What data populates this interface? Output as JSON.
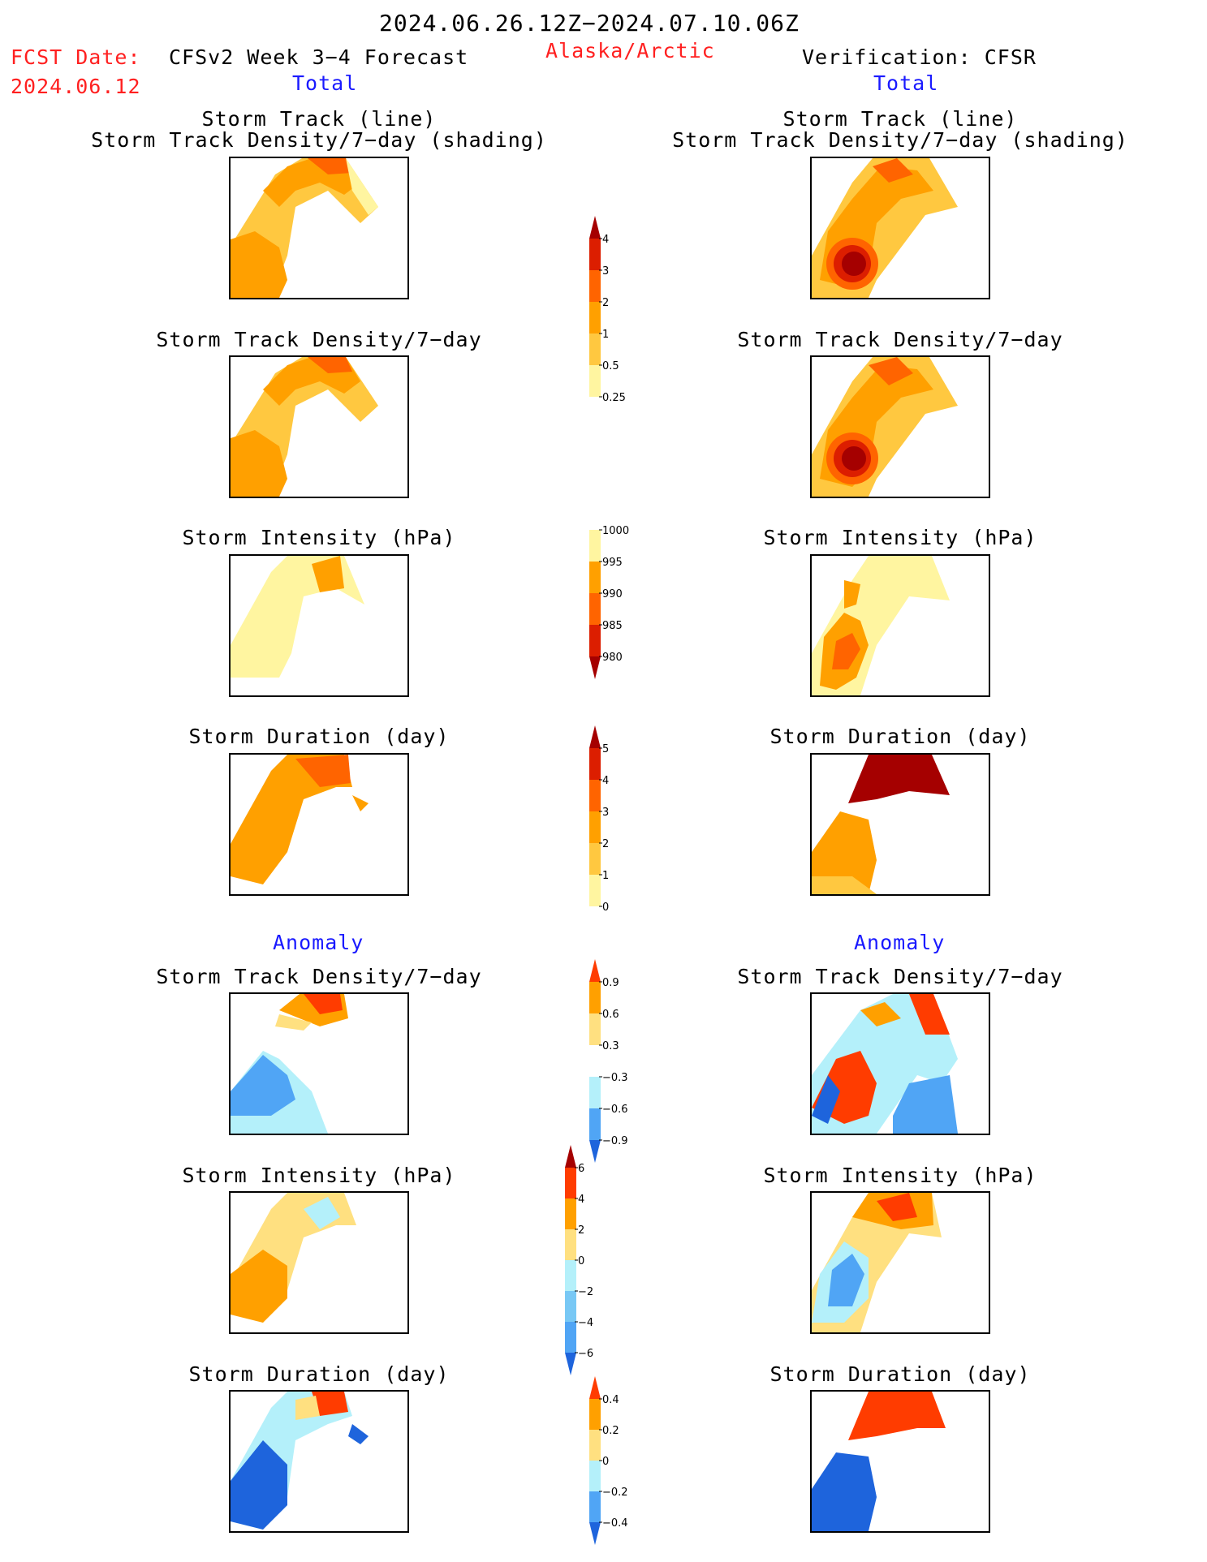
{
  "header": {
    "date_range": "2024.06.26.12Z−2024.07.10.06Z",
    "fcst_label": "FCST Date:",
    "fcst_date": "2024.06.12",
    "model": "CFSv2 Week 3−4 Forecast",
    "region": "Alaska/Arctic",
    "verification": "Verification: CFSR",
    "total_left": "Total",
    "total_right": "Total",
    "anomaly_left": "Anomaly",
    "anomaly_right": "Anomaly"
  },
  "panels": {
    "p1_title1": "Storm Track (line)",
    "p1_title2": "Storm Track Density/7−day (shading)",
    "p2_title": "Storm Track Density/7−day",
    "p3_title": "Storm Intensity (hPa)",
    "p4_title": "Storm Duration (day)",
    "p5_title": "Storm Track Density/7−day",
    "p6_title": "Storm Intensity (hPa)",
    "p7_title": "Storm Duration (day)"
  },
  "colorbars": {
    "density": {
      "labels": [
        "4",
        "3",
        "2",
        "1",
        "0.5",
        "0.25"
      ],
      "colors": [
        "#a50000",
        "#dc1e00",
        "#ff6400",
        "#ffa000",
        "#ffc840",
        "#fff5a0"
      ]
    },
    "intensity": {
      "labels": [
        "1000",
        "995",
        "990",
        "985",
        "980"
      ],
      "colors": [
        "#fff5a0",
        "#ffa000",
        "#ff6400",
        "#dc1e00",
        "#a50000"
      ]
    },
    "duration": {
      "labels": [
        "5",
        "4",
        "3",
        "2",
        "1",
        "0"
      ],
      "colors": [
        "#a50000",
        "#dc1e00",
        "#ff6400",
        "#ffa000",
        "#ffc840",
        "#fff5a0"
      ]
    },
    "density_anom": {
      "labels": [
        "0.9",
        "0.6",
        "0.3",
        "−0.3",
        "−0.6",
        "−0.9"
      ],
      "colors": [
        "#ff3c00",
        "#ffa000",
        "#ffe080",
        "#ffffff",
        "#b4f0fa",
        "#50a5f5",
        "#1e64dc"
      ]
    },
    "intensity_anom": {
      "labels": [
        "6",
        "4",
        "2",
        "0",
        "−2",
        "−4",
        "−6"
      ],
      "colors": [
        "#a50000",
        "#ff3c00",
        "#ffa000",
        "#ffe080",
        "#b4f0fa",
        "#78c8f5",
        "#50a5f5",
        "#1e64dc"
      ]
    },
    "duration_anom": {
      "labels": [
        "0.4",
        "0.2",
        "0",
        "−0.2",
        "−0.4"
      ],
      "colors": [
        "#ff3c00",
        "#ffa000",
        "#ffe080",
        "#b4f0fa",
        "#50a5f5",
        "#1e64dc"
      ]
    }
  }
}
